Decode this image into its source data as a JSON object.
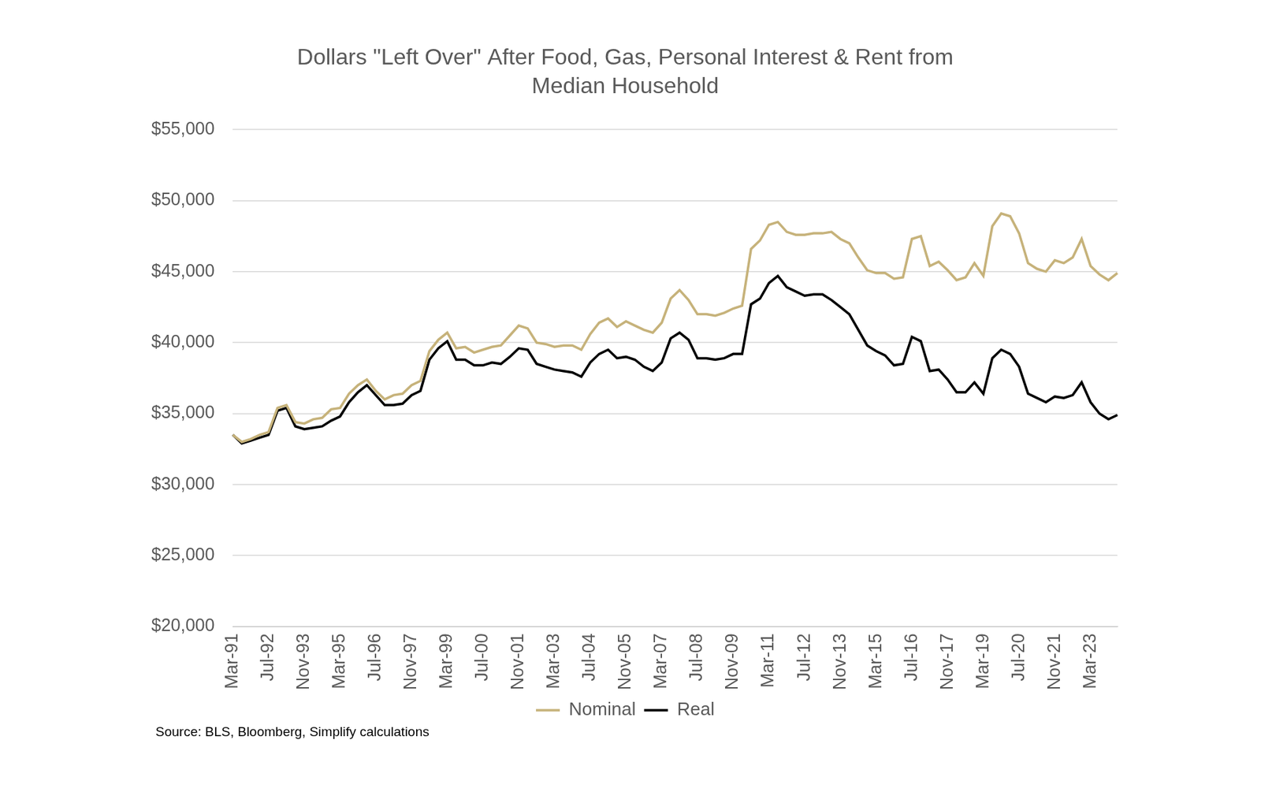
{
  "chart_data": {
    "type": "line",
    "title": [
      "Dollars \"Left Over\" After Food, Gas, Personal Interest & Rent from",
      "Median Household"
    ],
    "source": "Source: BLS, Bloomberg, Simplify calculations",
    "categories": [
      "Mar-91",
      null,
      null,
      null,
      "Jul-92",
      null,
      null,
      null,
      "Nov-93",
      null,
      null,
      null,
      "Mar-95",
      null,
      null,
      null,
      "Jul-96",
      null,
      null,
      null,
      "Nov-97",
      null,
      null,
      null,
      "Mar-99",
      null,
      null,
      null,
      "Jul-00",
      null,
      null,
      null,
      "Nov-01",
      null,
      null,
      null,
      "Mar-03",
      null,
      null,
      null,
      "Jul-04",
      null,
      null,
      null,
      "Nov-05",
      null,
      null,
      null,
      "Mar-07",
      null,
      null,
      null,
      "Jul-08",
      null,
      null,
      null,
      "Nov-09",
      null,
      null,
      null,
      "Mar-11",
      null,
      null,
      null,
      "Jul-12",
      null,
      null,
      null,
      "Nov-13",
      null,
      null,
      null,
      "Mar-15",
      null,
      null,
      null,
      "Jul-16",
      null,
      null,
      null,
      "Nov-17",
      null,
      null,
      null,
      "Mar-19",
      null,
      null,
      null,
      "Jul-20",
      null,
      null,
      null,
      "Nov-21",
      null,
      null,
      null,
      "Mar-23",
      null,
      null,
      null
    ],
    "series": [
      {
        "name": "Nominal",
        "color": "#c6b27a",
        "values": [
          33500,
          33000,
          33200,
          33500,
          33700,
          35400,
          35600,
          34400,
          34300,
          34600,
          34700,
          35300,
          35400,
          36400,
          37000,
          37400,
          36600,
          36000,
          36300,
          36400,
          37000,
          37300,
          39400,
          40200,
          40700,
          39600,
          39700,
          39300,
          39500,
          39700,
          39800,
          40500,
          41200,
          41000,
          40000,
          39900,
          39700,
          39800,
          39800,
          39500,
          40600,
          41400,
          41700,
          41100,
          41500,
          41200,
          40900,
          40700,
          41400,
          43100,
          43700,
          43000,
          42000,
          42000,
          41900,
          42100,
          42400,
          42600,
          46600,
          47200,
          48300,
          48500,
          47800,
          47600,
          47600,
          47700,
          47700,
          47800,
          47300,
          47000,
          46000,
          45100,
          44900,
          44900,
          44500,
          44600,
          47300,
          47500,
          45400,
          45700,
          45100,
          44400,
          44600,
          45600,
          44700,
          48200,
          49100,
          48900,
          47700,
          45600,
          45200,
          45000,
          45800,
          45600,
          46000,
          47300,
          45400,
          44800,
          44400,
          44900
        ]
      },
      {
        "name": "Real",
        "color": "#000000",
        "values": [
          33500,
          32900,
          33100,
          33300,
          33500,
          35200,
          35400,
          34100,
          33900,
          34000,
          34100,
          34500,
          34800,
          35800,
          36500,
          37000,
          36300,
          35600,
          35600,
          35700,
          36300,
          36600,
          38800,
          39600,
          40100,
          38800,
          38800,
          38400,
          38400,
          38600,
          38500,
          39000,
          39600,
          39500,
          38500,
          38300,
          38100,
          38000,
          37900,
          37600,
          38600,
          39200,
          39500,
          38900,
          39000,
          38800,
          38300,
          38000,
          38600,
          40300,
          40700,
          40200,
          38900,
          38900,
          38800,
          38900,
          39200,
          39200,
          42700,
          43100,
          44200,
          44700,
          43900,
          43600,
          43300,
          43400,
          43400,
          43000,
          42500,
          42000,
          40900,
          39800,
          39400,
          39100,
          38400,
          38500,
          40400,
          40100,
          38000,
          38100,
          37400,
          36500,
          36500,
          37200,
          36400,
          38900,
          39500,
          39200,
          38300,
          36400,
          36100,
          35800,
          36200,
          36100,
          36300,
          37200,
          35800,
          35000,
          34600,
          34900
        ]
      }
    ],
    "ylim": [
      20000,
      55000
    ],
    "yticks": [
      {
        "value": 20000,
        "label": "$20,000"
      },
      {
        "value": 25000,
        "label": "$25,000"
      },
      {
        "value": 30000,
        "label": "$30,000"
      },
      {
        "value": 35000,
        "label": "$35,000"
      },
      {
        "value": 40000,
        "label": "$40,000"
      },
      {
        "value": 45000,
        "label": "$45,000"
      },
      {
        "value": 50000,
        "label": "$50,000"
      },
      {
        "value": 55000,
        "label": "$55,000"
      }
    ],
    "grid": true,
    "legend": "bottom"
  }
}
